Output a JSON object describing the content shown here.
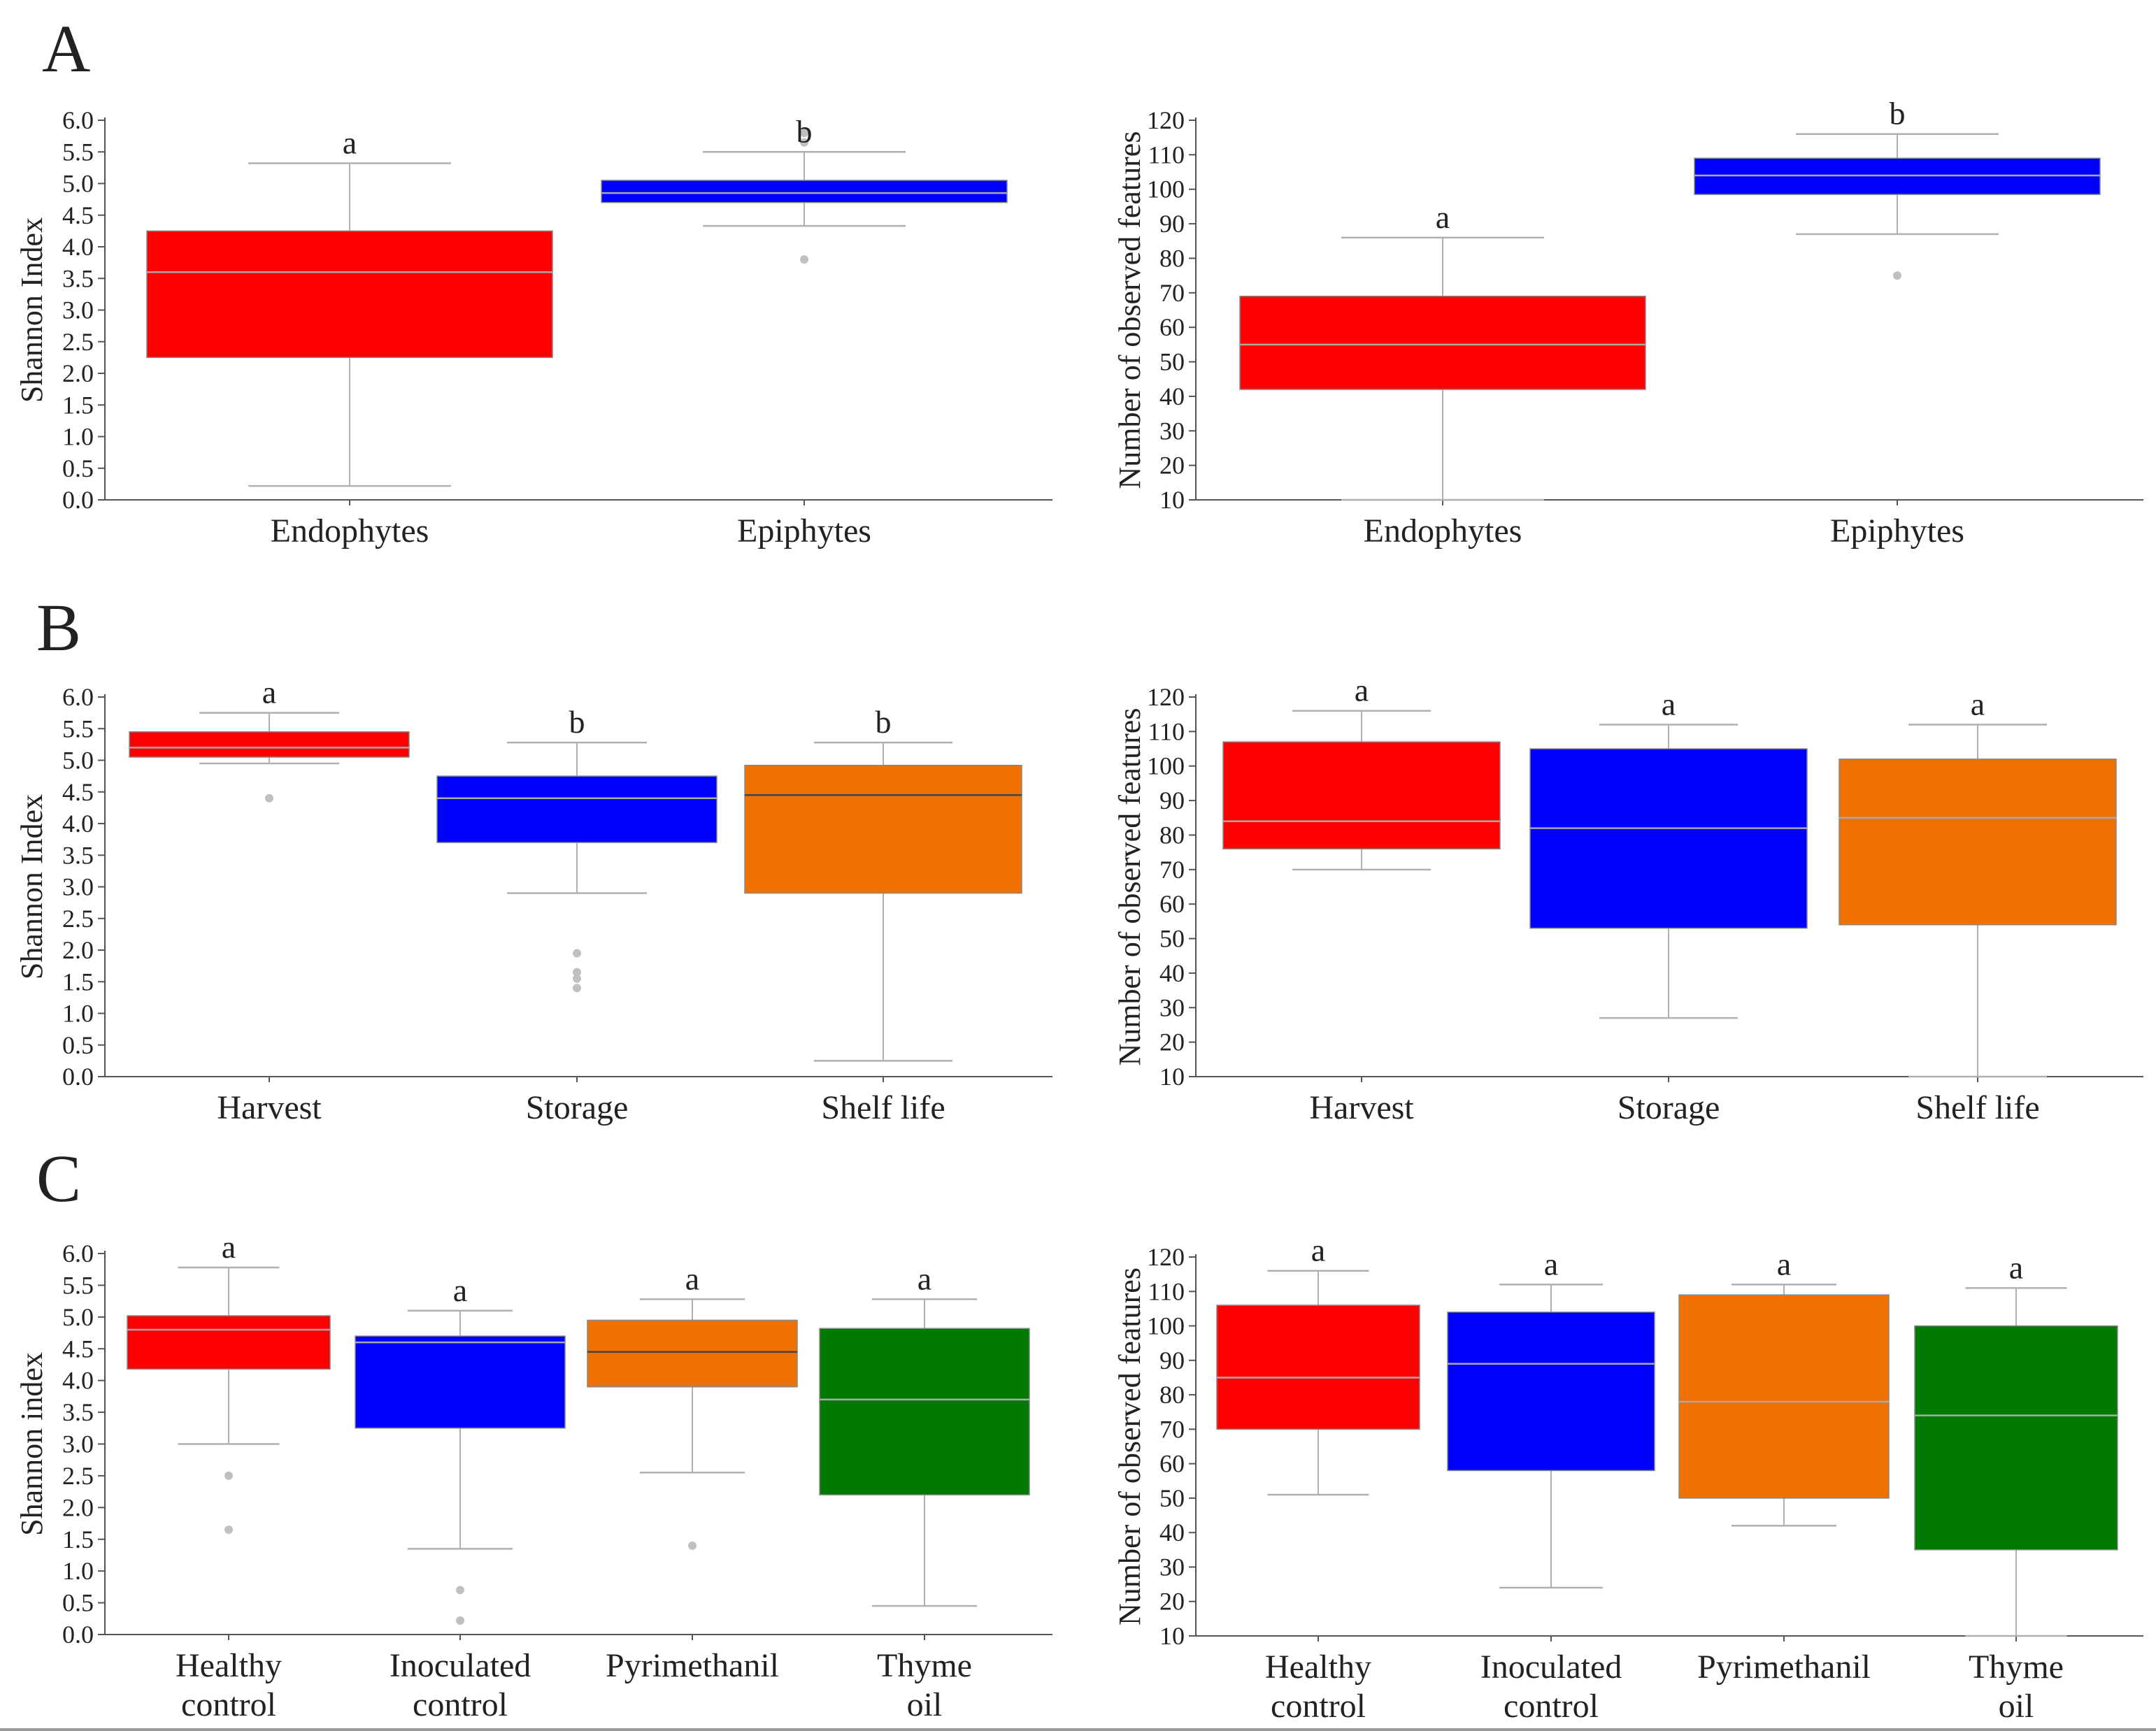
{
  "colors": {
    "red": "#ff0000",
    "blue": "#0000ff",
    "orange": "#f07000",
    "green": "#007a00",
    "whisker": "#b0b0b0",
    "axis": "#555555",
    "outlier": "#c0c0c0",
    "median_light": "#aaaaaa",
    "median_dark": "#444444"
  },
  "panels": [
    {
      "letter": "A"
    },
    {
      "letter": "B"
    },
    {
      "letter": "C"
    }
  ],
  "chart_data": [
    {
      "type": "box",
      "panel": "A",
      "ylabel": "Shannon Index",
      "ylim": [
        0,
        6
      ],
      "yticks": [
        "0.0",
        "0.5",
        "1.0",
        "1.5",
        "2.0",
        "2.5",
        "3.0",
        "3.5",
        "4.0",
        "4.5",
        "5.0",
        "5.5",
        "6.0"
      ],
      "boxes": [
        {
          "lines": [
            "Endophytes"
          ],
          "color": "red",
          "q1": 2.25,
          "median": 3.6,
          "q3": 4.25,
          "low": 0.22,
          "high": 5.32,
          "outliers": [],
          "sig": "a",
          "median_style": "light"
        },
        {
          "lines": [
            "Epiphytes"
          ],
          "color": "blue",
          "q1": 4.7,
          "median": 4.85,
          "q3": 5.05,
          "low": 4.33,
          "high": 5.5,
          "outliers": [
            3.8,
            5.65,
            5.8
          ],
          "sig": "b",
          "median_style": "light"
        }
      ]
    },
    {
      "type": "box",
      "panel": "A",
      "ylabel": "Number of observed features",
      "ylim": [
        10,
        120
      ],
      "yticks": [
        "10",
        "20",
        "30",
        "40",
        "50",
        "60",
        "70",
        "80",
        "90",
        "100",
        "110",
        "120"
      ],
      "boxes": [
        {
          "lines": [
            "Endophytes"
          ],
          "color": "red",
          "q1": 42,
          "median": 55,
          "q3": 69,
          "low": 10,
          "high": 86,
          "outliers": [],
          "sig": "a",
          "median_style": "light"
        },
        {
          "lines": [
            "Epiphytes"
          ],
          "color": "blue",
          "q1": 98.5,
          "median": 104,
          "q3": 109,
          "low": 87,
          "high": 116,
          "outliers": [
            75
          ],
          "sig": "b",
          "median_style": "light"
        }
      ]
    },
    {
      "type": "box",
      "panel": "B",
      "ylabel": "Shannon Index",
      "ylim": [
        0,
        6
      ],
      "yticks": [
        "0.0",
        "0.5",
        "1.0",
        "1.5",
        "2.0",
        "2.5",
        "3.0",
        "3.5",
        "4.0",
        "4.5",
        "5.0",
        "5.5",
        "6.0"
      ],
      "boxes": [
        {
          "lines": [
            "Harvest"
          ],
          "color": "red",
          "q1": 5.05,
          "median": 5.2,
          "q3": 5.45,
          "low": 4.95,
          "high": 5.75,
          "outliers": [
            4.4
          ],
          "sig": "a",
          "median_style": "light"
        },
        {
          "lines": [
            "Storage"
          ],
          "color": "blue",
          "q1": 3.7,
          "median": 4.4,
          "q3": 4.75,
          "low": 2.9,
          "high": 5.28,
          "outliers": [
            1.95,
            1.65,
            1.55,
            1.4
          ],
          "sig": "b",
          "median_style": "light"
        },
        {
          "lines": [
            "Shelf life"
          ],
          "color": "orange",
          "q1": 2.9,
          "median": 4.45,
          "q3": 4.92,
          "low": 0.25,
          "high": 5.28,
          "outliers": [],
          "sig": "b",
          "median_style": "dark"
        }
      ]
    },
    {
      "type": "box",
      "panel": "B",
      "ylabel": "Number of observed features",
      "ylim": [
        10,
        120
      ],
      "yticks": [
        "10",
        "20",
        "30",
        "40",
        "50",
        "60",
        "70",
        "80",
        "90",
        "100",
        "110",
        "120"
      ],
      "boxes": [
        {
          "lines": [
            "Harvest"
          ],
          "color": "red",
          "q1": 76,
          "median": 84,
          "q3": 107,
          "low": 70,
          "high": 116,
          "outliers": [],
          "sig": "a",
          "median_style": "light"
        },
        {
          "lines": [
            "Storage"
          ],
          "color": "blue",
          "q1": 53,
          "median": 82,
          "q3": 105,
          "low": 27,
          "high": 112,
          "outliers": [],
          "sig": "a",
          "median_style": "light"
        },
        {
          "lines": [
            "Shelf life"
          ],
          "color": "orange",
          "q1": 54,
          "median": 85,
          "q3": 102,
          "low": 10,
          "high": 112,
          "outliers": [],
          "sig": "a",
          "median_style": "light"
        }
      ]
    },
    {
      "type": "box",
      "panel": "C",
      "ylabel": "Shannon index",
      "ylim": [
        0,
        6
      ],
      "yticks": [
        "0.0",
        "0.5",
        "1.0",
        "1.5",
        "2.0",
        "2.5",
        "3.0",
        "3.5",
        "4.0",
        "4.5",
        "5.0",
        "5.5",
        "6.0"
      ],
      "boxes": [
        {
          "lines": [
            "Healthy",
            "control"
          ],
          "color": "red",
          "q1": 4.18,
          "median": 4.8,
          "q3": 5.02,
          "low": 3.0,
          "high": 5.78,
          "outliers": [
            2.5,
            1.65
          ],
          "sig": "a",
          "median_style": "light"
        },
        {
          "lines": [
            "Inoculated",
            "control"
          ],
          "color": "blue",
          "q1": 3.25,
          "median": 4.6,
          "q3": 4.7,
          "low": 1.35,
          "high": 5.1,
          "outliers": [
            0.7,
            0.22
          ],
          "sig": "a",
          "median_style": "light"
        },
        {
          "lines": [
            "Pyrimethanil"
          ],
          "color": "orange",
          "q1": 3.9,
          "median": 4.45,
          "q3": 4.95,
          "low": 2.55,
          "high": 5.28,
          "outliers": [
            1.4
          ],
          "sig": "a",
          "median_style": "dark"
        },
        {
          "lines": [
            "Thyme",
            "oil"
          ],
          "color": "green",
          "q1": 2.2,
          "median": 3.7,
          "q3": 4.82,
          "low": 0.45,
          "high": 5.28,
          "outliers": [],
          "sig": "a",
          "median_style": "light"
        }
      ]
    },
    {
      "type": "box",
      "panel": "C",
      "ylabel": "Number of observed features",
      "ylim": [
        10,
        120
      ],
      "yticks": [
        "10",
        "20",
        "30",
        "40",
        "50",
        "60",
        "70",
        "80",
        "90",
        "100",
        "110",
        "120"
      ],
      "boxes": [
        {
          "lines": [
            "Healthy",
            "control"
          ],
          "color": "red",
          "q1": 70,
          "median": 85,
          "q3": 106,
          "low": 51,
          "high": 116,
          "outliers": [],
          "sig": "a",
          "median_style": "light"
        },
        {
          "lines": [
            "Inoculated",
            "control"
          ],
          "color": "blue",
          "q1": 58,
          "median": 89,
          "q3": 104,
          "low": 24,
          "high": 112,
          "outliers": [],
          "sig": "a",
          "median_style": "light"
        },
        {
          "lines": [
            "Pyrimethanil"
          ],
          "color": "orange",
          "q1": 50,
          "median": 78,
          "q3": 109,
          "low": 42,
          "high": 112,
          "outliers": [],
          "sig": "a",
          "median_style": "light"
        },
        {
          "lines": [
            "Thyme",
            "oil"
          ],
          "color": "green",
          "q1": 35,
          "median": 74,
          "q3": 100,
          "low": 10,
          "high": 111,
          "outliers": [],
          "sig": "a",
          "median_style": "light"
        }
      ]
    }
  ]
}
